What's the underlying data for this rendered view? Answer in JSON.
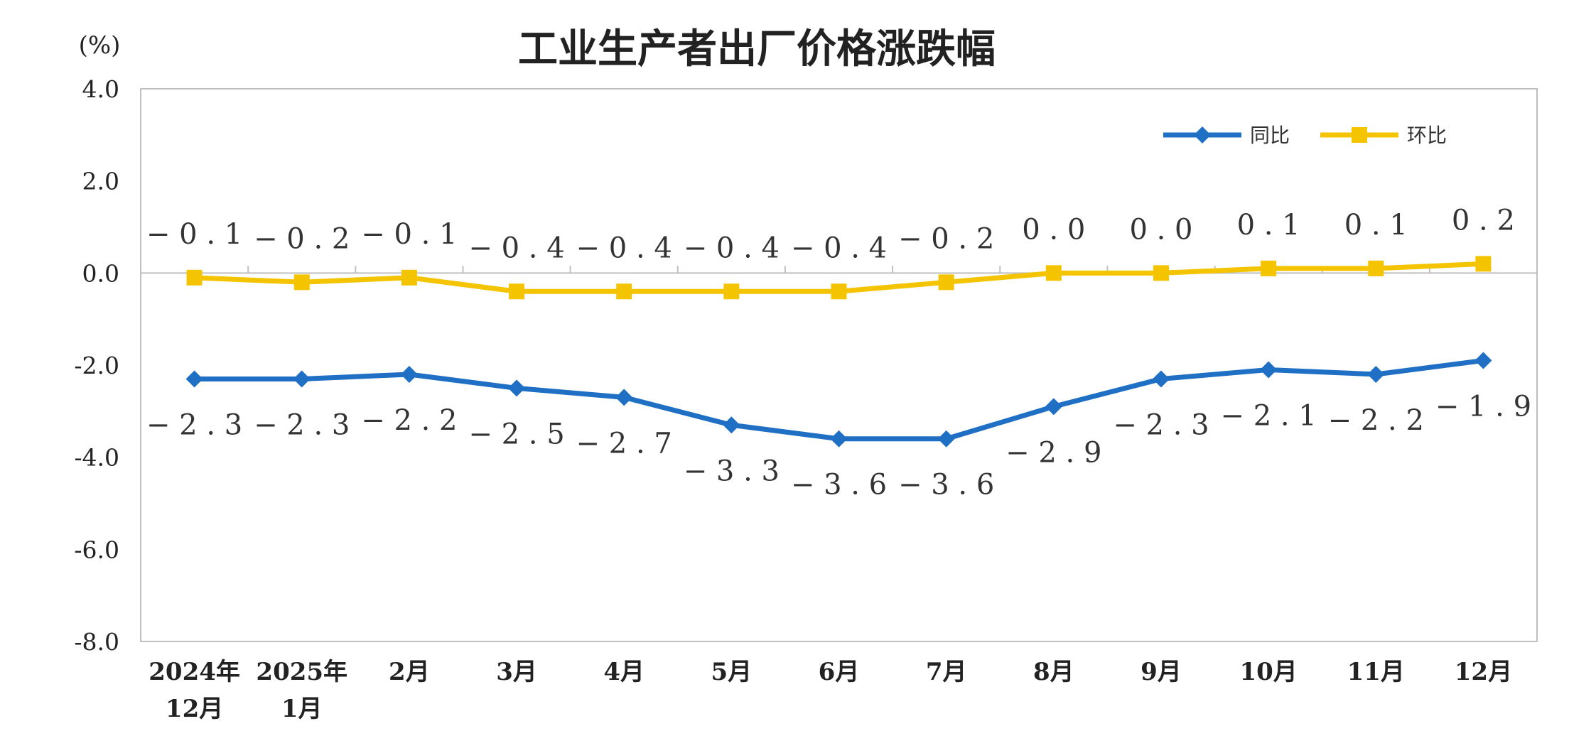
{
  "chart_data": {
    "type": "line",
    "title": "工业生产者出厂价格涨跌幅",
    "y_unit": "(%)",
    "ylim": [
      -8.0,
      4.0
    ],
    "y_ticks": [
      "4.0",
      "2.0",
      "0.0",
      "-2.0",
      "-4.0",
      "-6.0",
      "-8.0"
    ],
    "categories": [
      [
        "2024年",
        "12月"
      ],
      [
        "2025年",
        "1月"
      ],
      [
        "2月"
      ],
      [
        "3月"
      ],
      [
        "4月"
      ],
      [
        "5月"
      ],
      [
        "6月"
      ],
      [
        "7月"
      ],
      [
        "8月"
      ],
      [
        "9月"
      ],
      [
        "10月"
      ],
      [
        "11月"
      ],
      [
        "12月"
      ]
    ],
    "series": [
      {
        "name": "同比",
        "color": "#1f6fc5",
        "marker": "diamond",
        "values": [
          -2.3,
          -2.3,
          -2.2,
          -2.5,
          -2.7,
          -3.3,
          -3.6,
          -3.6,
          -2.9,
          -2.3,
          -2.1,
          -2.2,
          -1.9
        ],
        "labels": [
          "-2.3",
          "-2.3",
          "-2.2",
          "-2.5",
          "-2.7",
          "-3.3",
          "-3.6",
          "-3.6",
          "-2.9",
          "-2.3",
          "-2.1",
          "-2.2",
          "-1.9"
        ]
      },
      {
        "name": "环比",
        "color": "#f5c400",
        "marker": "square",
        "values": [
          -0.1,
          -0.2,
          -0.1,
          -0.4,
          -0.4,
          -0.4,
          -0.4,
          -0.2,
          0.0,
          0.0,
          0.1,
          0.1,
          0.2
        ],
        "labels": [
          "-0.1",
          "-0.2",
          "-0.1",
          "-0.4",
          "-0.4",
          "-0.4",
          "-0.4",
          "-0.2",
          "0.0",
          "0.0",
          "0.1",
          "0.1",
          "0.2"
        ]
      }
    ],
    "legend_position": "top-right",
    "grid": false
  }
}
